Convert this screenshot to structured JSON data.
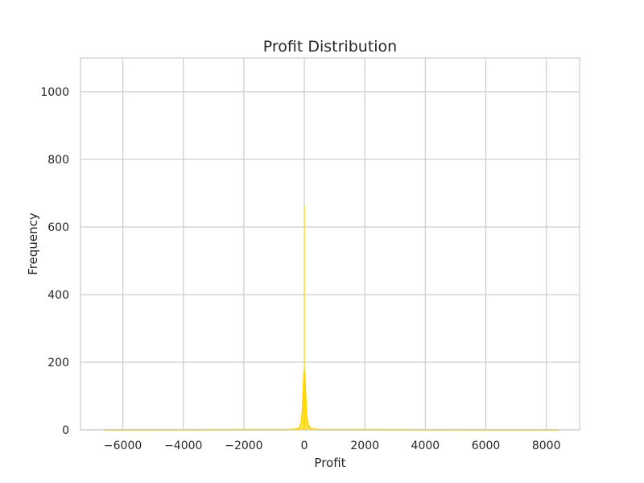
{
  "chart_data": {
    "type": "histogram",
    "title": "Profit Distribution",
    "xlabel": "Profit",
    "ylabel": "Frequency",
    "xlim": [
      -7400,
      9100
    ],
    "ylim": [
      0,
      1100
    ],
    "x_ticks": [
      -6000,
      -4000,
      -2000,
      0,
      2000,
      4000,
      6000,
      8000
    ],
    "x_tick_labels": [
      "−6000",
      "−4000",
      "−2000",
      "0",
      "2000",
      "4000",
      "6000",
      "8000"
    ],
    "y_ticks": [
      0,
      200,
      400,
      600,
      800,
      1000
    ],
    "y_tick_labels": [
      "0",
      "200",
      "400",
      "600",
      "800",
      "1000"
    ],
    "grid": true,
    "color": "#ffd700",
    "bins": [
      {
        "x0": -6600,
        "x1": -200,
        "count": 1
      },
      {
        "x0": -200,
        "x1": -100,
        "count": 8
      },
      {
        "x0": -100,
        "x1": -50,
        "count": 30
      },
      {
        "x0": -50,
        "x1": -20,
        "count": 70
      },
      {
        "x0": -20,
        "x1": -5,
        "count": 140
      },
      {
        "x0": -5,
        "x1": 5,
        "count": 665
      },
      {
        "x0": 5,
        "x1": 20,
        "count": 160
      },
      {
        "x0": 20,
        "x1": 50,
        "count": 80
      },
      {
        "x0": 50,
        "x1": 100,
        "count": 35
      },
      {
        "x0": 100,
        "x1": 200,
        "count": 12
      },
      {
        "x0": 200,
        "x1": 8400,
        "count": 1
      }
    ],
    "kde": {
      "x": [
        -6600,
        -2000,
        -500,
        -300,
        -200,
        -150,
        -100,
        -60,
        -30,
        -10,
        0,
        10,
        30,
        60,
        100,
        150,
        200,
        300,
        500,
        2000,
        8400
      ],
      "y": [
        0,
        0.5,
        1,
        2,
        4,
        8,
        20,
        60,
        120,
        165,
        178,
        165,
        120,
        60,
        20,
        8,
        4,
        2,
        1,
        0.5,
        0
      ]
    }
  }
}
